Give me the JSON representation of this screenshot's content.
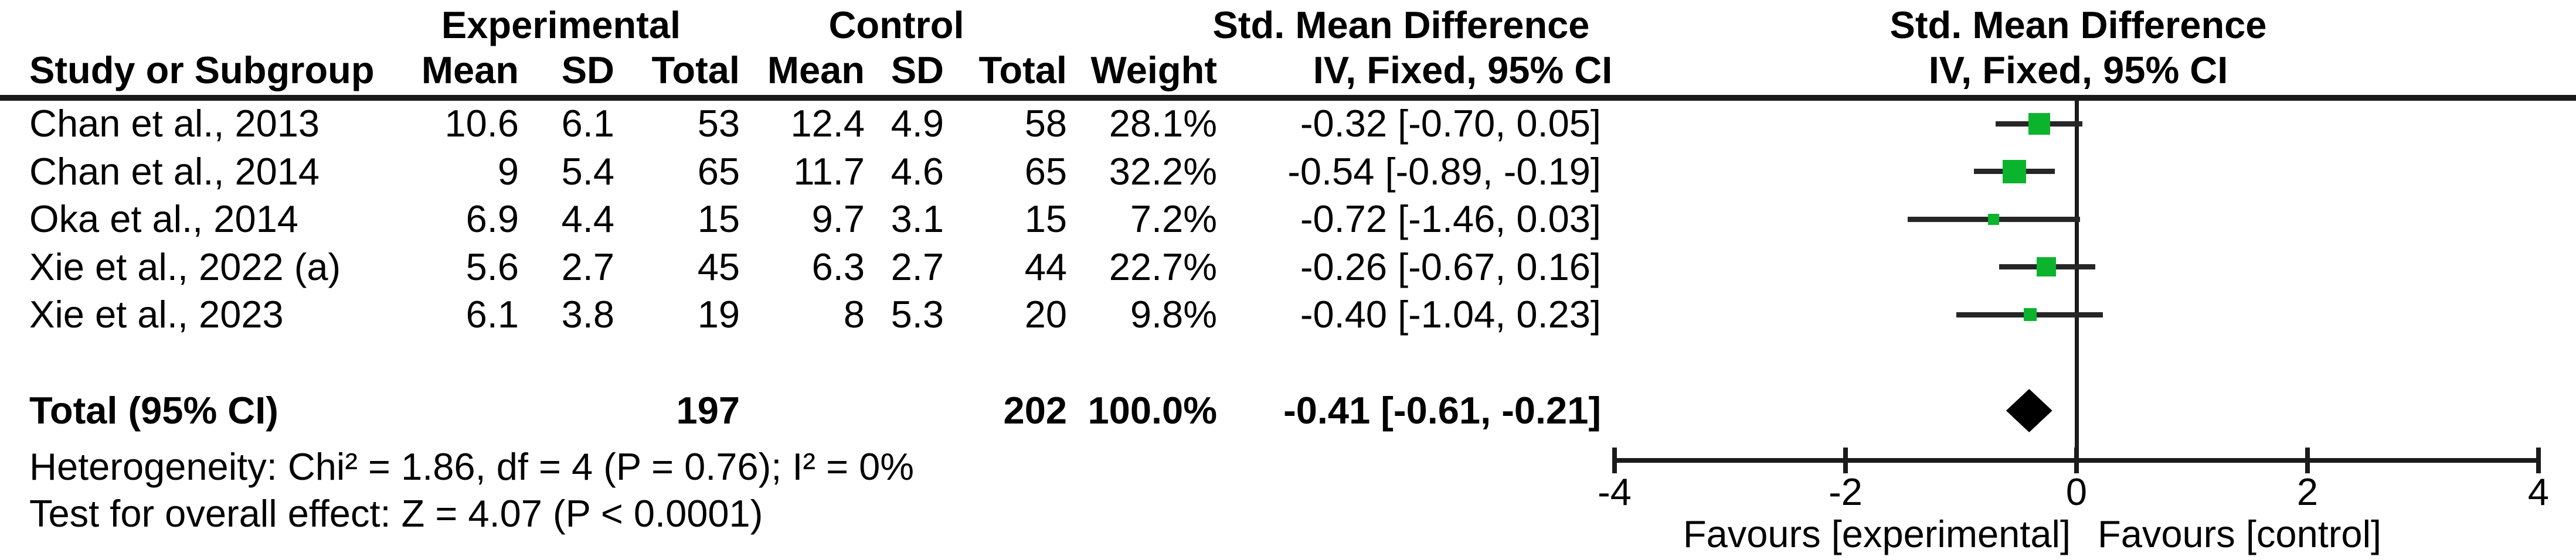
{
  "colors": {
    "marker_green": "#0bb42c",
    "diamond_black": "#000000",
    "line_dark": "#1b1b1b",
    "whisker_dark": "#262626",
    "text": "#000000",
    "background": "#ffffff"
  },
  "header": {
    "experimental": "Experimental",
    "control": "Control",
    "study_col": "Study or Subgroup",
    "mean_col": "Mean",
    "sd_col": "SD",
    "total_col": "Total",
    "weight_col": "Weight",
    "effect_line1": "Std. Mean Difference",
    "effect_line2": "IV, Fixed, 95% CI",
    "plot_line1": "Std. Mean Difference",
    "plot_line2": "IV, Fixed, 95% CI"
  },
  "studies": [
    {
      "study": "Chan et al., 2013",
      "exp_mean": "10.6",
      "exp_sd": "6.1",
      "exp_total": "53",
      "ctrl_mean": "12.4",
      "ctrl_sd": "4.9",
      "ctrl_total": "58",
      "weight": "28.1%",
      "ci_text": "-0.32 [-0.70, 0.05]",
      "est": -0.32,
      "lo": -0.7,
      "hi": 0.05,
      "weight_val": 28.1
    },
    {
      "study": "Chan et al., 2014",
      "exp_mean": "9",
      "exp_sd": "5.4",
      "exp_total": "65",
      "ctrl_mean": "11.7",
      "ctrl_sd": "4.6",
      "ctrl_total": "65",
      "weight": "32.2%",
      "ci_text": "-0.54 [-0.89, -0.19]",
      "est": -0.54,
      "lo": -0.89,
      "hi": -0.19,
      "weight_val": 32.2
    },
    {
      "study": "Oka et al., 2014",
      "exp_mean": "6.9",
      "exp_sd": "4.4",
      "exp_total": "15",
      "ctrl_mean": "9.7",
      "ctrl_sd": "3.1",
      "ctrl_total": "15",
      "weight": "7.2%",
      "ci_text": "-0.72 [-1.46, 0.03]",
      "est": -0.72,
      "lo": -1.46,
      "hi": 0.03,
      "weight_val": 7.2
    },
    {
      "study": "Xie et al., 2022 (a)",
      "exp_mean": "5.6",
      "exp_sd": "2.7",
      "exp_total": "45",
      "ctrl_mean": "6.3",
      "ctrl_sd": "2.7",
      "ctrl_total": "44",
      "weight": "22.7%",
      "ci_text": "-0.26 [-0.67, 0.16]",
      "est": -0.26,
      "lo": -0.67,
      "hi": 0.16,
      "weight_val": 22.7
    },
    {
      "study": "Xie et al., 2023",
      "exp_mean": "6.1",
      "exp_sd": "3.8",
      "exp_total": "19",
      "ctrl_mean": "8",
      "ctrl_sd": "5.3",
      "ctrl_total": "20",
      "weight": "9.8%",
      "ci_text": "-0.40 [-1.04, 0.23]",
      "est": -0.4,
      "lo": -1.04,
      "hi": 0.23,
      "weight_val": 9.8
    }
  ],
  "total": {
    "label": "Total (95% CI)",
    "exp_total": "197",
    "ctrl_total": "202",
    "weight": "100.0%",
    "ci_text": "-0.41 [-0.61, -0.21]",
    "est": -0.41,
    "lo": -0.61,
    "hi": -0.21
  },
  "footnotes": {
    "heterogeneity": "Heterogeneity: Chi² = 1.86, df = 4 (P = 0.76); I² = 0%",
    "overall": "Test for overall effect: Z = 4.07 (P < 0.0001)"
  },
  "axis": {
    "tick_values": [
      -4,
      -2,
      0,
      2,
      4
    ],
    "tick_labels": [
      "-4",
      "-2",
      "0",
      "2",
      "4"
    ],
    "favours_left": "Favours [experimental]",
    "favours_right": "Favours [control]"
  },
  "chart_data": {
    "type": "scatter",
    "subtype": "forest_plot_fixed_effect",
    "title": "Std. Mean Difference  IV, Fixed, 95% CI",
    "xlim": [
      -4,
      4
    ],
    "xticks": [
      -4,
      -2,
      0,
      2,
      4
    ],
    "xlabel_left": "Favours [experimental]",
    "xlabel_right": "Favours [control]",
    "grid": false,
    "studies": [
      {
        "name": "Chan et al., 2013",
        "exp_mean": 10.6,
        "exp_sd": 6.1,
        "exp_total": 53,
        "ctrl_mean": 12.4,
        "ctrl_sd": 4.9,
        "ctrl_total": 58,
        "weight_pct": 28.1,
        "smd": -0.32,
        "ci_low": -0.7,
        "ci_high": 0.05
      },
      {
        "name": "Chan et al., 2014",
        "exp_mean": 9,
        "exp_sd": 5.4,
        "exp_total": 65,
        "ctrl_mean": 11.7,
        "ctrl_sd": 4.6,
        "ctrl_total": 65,
        "weight_pct": 32.2,
        "smd": -0.54,
        "ci_low": -0.89,
        "ci_high": -0.19
      },
      {
        "name": "Oka et al., 2014",
        "exp_mean": 6.9,
        "exp_sd": 4.4,
        "exp_total": 15,
        "ctrl_mean": 9.7,
        "ctrl_sd": 3.1,
        "ctrl_total": 15,
        "weight_pct": 7.2,
        "smd": -0.72,
        "ci_low": -1.46,
        "ci_high": 0.03
      },
      {
        "name": "Xie et al., 2022 (a)",
        "exp_mean": 5.6,
        "exp_sd": 2.7,
        "exp_total": 45,
        "ctrl_mean": 6.3,
        "ctrl_sd": 2.7,
        "ctrl_total": 44,
        "weight_pct": 22.7,
        "smd": -0.26,
        "ci_low": -0.67,
        "ci_high": 0.16
      },
      {
        "name": "Xie et al., 2023",
        "exp_mean": 6.1,
        "exp_sd": 3.8,
        "exp_total": 19,
        "ctrl_mean": 8,
        "ctrl_sd": 5.3,
        "ctrl_total": 20,
        "weight_pct": 9.8,
        "smd": -0.4,
        "ci_low": -1.04,
        "ci_high": 0.23
      }
    ],
    "pooled": {
      "label": "Total (95% CI)",
      "exp_total": 197,
      "ctrl_total": 202,
      "weight_pct": 100.0,
      "smd": -0.41,
      "ci_low": -0.61,
      "ci_high": -0.21
    },
    "heterogeneity": "Chi² = 1.86, df = 4 (P = 0.76); I² = 0%",
    "overall_effect": "Z = 4.07 (P < 0.0001)"
  }
}
